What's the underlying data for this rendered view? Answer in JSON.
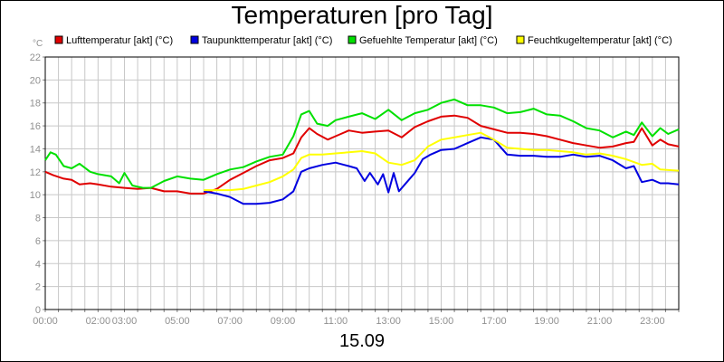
{
  "chart_data": {
    "type": "line",
    "title": "Temperaturen [pro Tag]",
    "ylabel": "°C",
    "xlabel": "15.09",
    "ylim": [
      0,
      22
    ],
    "yticks": [
      0,
      2,
      4,
      6,
      8,
      10,
      12,
      14,
      16,
      18,
      20,
      22
    ],
    "xlim": [
      0,
      24
    ],
    "xticks": [
      {
        "h": 0,
        "label": "00:00"
      },
      {
        "h": 2,
        "label": "02:00"
      },
      {
        "h": 3,
        "label": "03:00"
      },
      {
        "h": 5,
        "label": "05:00"
      },
      {
        "h": 7,
        "label": "07:00"
      },
      {
        "h": 9,
        "label": "09:00"
      },
      {
        "h": 11,
        "label": "11:00"
      },
      {
        "h": 13,
        "label": "13:00"
      },
      {
        "h": 15,
        "label": "15:00"
      },
      {
        "h": 17,
        "label": "17:00"
      },
      {
        "h": 19,
        "label": "19:00"
      },
      {
        "h": 21,
        "label": "21:00"
      },
      {
        "h": 23,
        "label": "23:00"
      }
    ],
    "grid": true,
    "legend_position": "top",
    "series": [
      {
        "name": "Lufttemperatur [akt] (°C)",
        "color": "#e00000",
        "points": [
          [
            0.0,
            12.0
          ],
          [
            0.3,
            11.7
          ],
          [
            0.7,
            11.4
          ],
          [
            1.0,
            11.3
          ],
          [
            1.3,
            10.9
          ],
          [
            1.7,
            11.0
          ],
          [
            2.0,
            10.9
          ],
          [
            2.5,
            10.7
          ],
          [
            3.0,
            10.6
          ],
          [
            3.5,
            10.5
          ],
          [
            4.0,
            10.6
          ],
          [
            4.5,
            10.3
          ],
          [
            5.0,
            10.3
          ],
          [
            5.5,
            10.1
          ],
          [
            6.0,
            10.1
          ],
          [
            6.5,
            10.5
          ],
          [
            7.0,
            11.3
          ],
          [
            7.5,
            11.9
          ],
          [
            8.0,
            12.5
          ],
          [
            8.5,
            13.0
          ],
          [
            9.0,
            13.2
          ],
          [
            9.4,
            13.6
          ],
          [
            9.7,
            15.0
          ],
          [
            10.0,
            15.8
          ],
          [
            10.3,
            15.3
          ],
          [
            10.7,
            14.8
          ],
          [
            11.0,
            15.1
          ],
          [
            11.5,
            15.6
          ],
          [
            12.0,
            15.4
          ],
          [
            12.5,
            15.5
          ],
          [
            13.0,
            15.6
          ],
          [
            13.5,
            15.0
          ],
          [
            14.0,
            15.9
          ],
          [
            14.5,
            16.4
          ],
          [
            15.0,
            16.8
          ],
          [
            15.5,
            16.9
          ],
          [
            16.0,
            16.7
          ],
          [
            16.5,
            16.0
          ],
          [
            17.0,
            15.7
          ],
          [
            17.5,
            15.4
          ],
          [
            18.0,
            15.4
          ],
          [
            18.5,
            15.3
          ],
          [
            19.0,
            15.1
          ],
          [
            19.5,
            14.8
          ],
          [
            20.0,
            14.5
          ],
          [
            20.5,
            14.3
          ],
          [
            21.0,
            14.1
          ],
          [
            21.5,
            14.2
          ],
          [
            22.0,
            14.5
          ],
          [
            22.3,
            14.6
          ],
          [
            22.6,
            15.8
          ],
          [
            23.0,
            14.3
          ],
          [
            23.3,
            14.8
          ],
          [
            23.6,
            14.4
          ],
          [
            24.0,
            14.2
          ]
        ]
      },
      {
        "name": "Taupunkttemperatur [akt] (°C)",
        "color": "#0000e0",
        "points": [
          [
            6.0,
            10.3
          ],
          [
            6.5,
            10.1
          ],
          [
            7.0,
            9.8
          ],
          [
            7.5,
            9.2
          ],
          [
            8.0,
            9.2
          ],
          [
            8.5,
            9.3
          ],
          [
            9.0,
            9.6
          ],
          [
            9.4,
            10.3
          ],
          [
            9.7,
            12.0
          ],
          [
            10.0,
            12.3
          ],
          [
            10.5,
            12.6
          ],
          [
            11.0,
            12.8
          ],
          [
            11.5,
            12.5
          ],
          [
            11.8,
            12.3
          ],
          [
            12.1,
            11.2
          ],
          [
            12.3,
            11.9
          ],
          [
            12.6,
            10.9
          ],
          [
            12.8,
            11.8
          ],
          [
            13.0,
            10.2
          ],
          [
            13.2,
            11.9
          ],
          [
            13.4,
            10.3
          ],
          [
            13.7,
            11.1
          ],
          [
            14.0,
            11.9
          ],
          [
            14.3,
            13.1
          ],
          [
            14.6,
            13.5
          ],
          [
            15.0,
            13.9
          ],
          [
            15.5,
            14.0
          ],
          [
            16.0,
            14.5
          ],
          [
            16.5,
            15.0
          ],
          [
            17.0,
            14.8
          ],
          [
            17.5,
            13.5
          ],
          [
            18.0,
            13.4
          ],
          [
            18.5,
            13.4
          ],
          [
            19.0,
            13.3
          ],
          [
            19.5,
            13.3
          ],
          [
            20.0,
            13.5
          ],
          [
            20.5,
            13.3
          ],
          [
            21.0,
            13.4
          ],
          [
            21.5,
            13.0
          ],
          [
            22.0,
            12.3
          ],
          [
            22.3,
            12.5
          ],
          [
            22.6,
            11.1
          ],
          [
            23.0,
            11.3
          ],
          [
            23.3,
            11.0
          ],
          [
            23.6,
            11.0
          ],
          [
            24.0,
            10.9
          ]
        ]
      },
      {
        "name": "Gefuehlte Temperatur [akt] (°C)",
        "color": "#00e000",
        "points": [
          [
            0.0,
            13.0
          ],
          [
            0.2,
            13.7
          ],
          [
            0.4,
            13.5
          ],
          [
            0.7,
            12.5
          ],
          [
            1.0,
            12.3
          ],
          [
            1.3,
            12.7
          ],
          [
            1.7,
            12.0
          ],
          [
            2.0,
            11.8
          ],
          [
            2.5,
            11.6
          ],
          [
            2.8,
            11.0
          ],
          [
            3.0,
            11.9
          ],
          [
            3.3,
            10.8
          ],
          [
            3.7,
            10.6
          ],
          [
            4.0,
            10.6
          ],
          [
            4.5,
            11.2
          ],
          [
            5.0,
            11.6
          ],
          [
            5.5,
            11.4
          ],
          [
            6.0,
            11.3
          ],
          [
            6.5,
            11.8
          ],
          [
            7.0,
            12.2
          ],
          [
            7.5,
            12.4
          ],
          [
            8.0,
            12.9
          ],
          [
            8.5,
            13.3
          ],
          [
            9.0,
            13.5
          ],
          [
            9.4,
            15.1
          ],
          [
            9.7,
            17.0
          ],
          [
            10.0,
            17.3
          ],
          [
            10.3,
            16.2
          ],
          [
            10.7,
            16.0
          ],
          [
            11.0,
            16.5
          ],
          [
            11.5,
            16.8
          ],
          [
            12.0,
            17.1
          ],
          [
            12.5,
            16.6
          ],
          [
            13.0,
            17.4
          ],
          [
            13.5,
            16.5
          ],
          [
            14.0,
            17.1
          ],
          [
            14.5,
            17.4
          ],
          [
            15.0,
            18.0
          ],
          [
            15.5,
            18.3
          ],
          [
            16.0,
            17.8
          ],
          [
            16.5,
            17.8
          ],
          [
            17.0,
            17.6
          ],
          [
            17.5,
            17.1
          ],
          [
            18.0,
            17.2
          ],
          [
            18.5,
            17.5
          ],
          [
            19.0,
            17.0
          ],
          [
            19.5,
            16.9
          ],
          [
            20.0,
            16.4
          ],
          [
            20.5,
            15.8
          ],
          [
            21.0,
            15.6
          ],
          [
            21.5,
            15.0
          ],
          [
            22.0,
            15.5
          ],
          [
            22.3,
            15.2
          ],
          [
            22.6,
            16.3
          ],
          [
            23.0,
            15.1
          ],
          [
            23.3,
            15.8
          ],
          [
            23.6,
            15.3
          ],
          [
            24.0,
            15.7
          ]
        ]
      },
      {
        "name": "Feuchtkugeltemperatur [akt] (°C)",
        "color": "#ffff00",
        "points": [
          [
            6.0,
            10.4
          ],
          [
            6.5,
            10.4
          ],
          [
            7.0,
            10.4
          ],
          [
            7.5,
            10.5
          ],
          [
            8.0,
            10.8
          ],
          [
            8.5,
            11.1
          ],
          [
            9.0,
            11.6
          ],
          [
            9.4,
            12.2
          ],
          [
            9.7,
            13.2
          ],
          [
            10.0,
            13.5
          ],
          [
            10.5,
            13.5
          ],
          [
            11.0,
            13.6
          ],
          [
            11.5,
            13.7
          ],
          [
            12.0,
            13.8
          ],
          [
            12.5,
            13.6
          ],
          [
            13.0,
            12.8
          ],
          [
            13.5,
            12.6
          ],
          [
            14.0,
            13.0
          ],
          [
            14.5,
            14.2
          ],
          [
            15.0,
            14.8
          ],
          [
            15.5,
            15.0
          ],
          [
            16.0,
            15.2
          ],
          [
            16.5,
            15.4
          ],
          [
            17.0,
            14.8
          ],
          [
            17.5,
            14.1
          ],
          [
            18.0,
            14.0
          ],
          [
            18.5,
            13.9
          ],
          [
            19.0,
            13.9
          ],
          [
            19.5,
            13.8
          ],
          [
            20.0,
            13.7
          ],
          [
            20.5,
            13.5
          ],
          [
            21.0,
            13.6
          ],
          [
            21.5,
            13.4
          ],
          [
            22.0,
            13.1
          ],
          [
            22.6,
            12.6
          ],
          [
            23.0,
            12.7
          ],
          [
            23.3,
            12.2
          ],
          [
            24.0,
            12.1
          ]
        ]
      }
    ]
  }
}
